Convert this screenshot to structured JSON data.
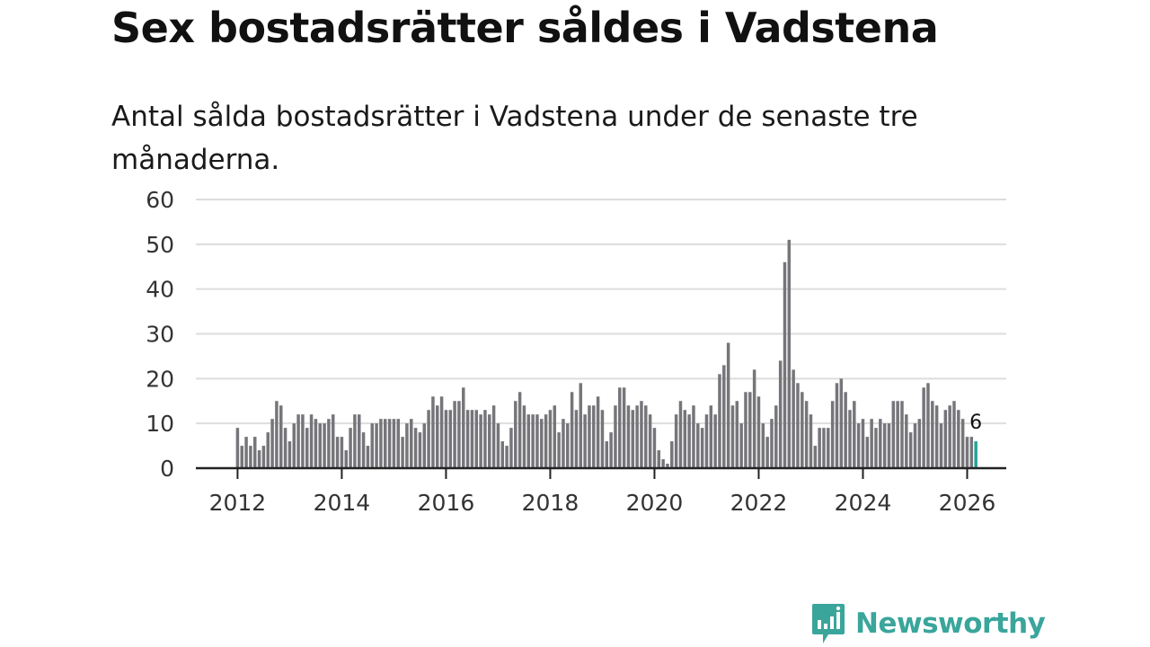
{
  "header": {
    "title": "Sex bostadsrätter såldes i Vadstena",
    "subtitle": "Antal sålda bostadsrätter i Vadstena under de senaste tre månaderna."
  },
  "brand": {
    "name": "Newsworthy",
    "color": "#3aa59b"
  },
  "colors": {
    "bar": "#75757a",
    "highlight": "#21a396",
    "grid": "#dddddd",
    "axis": "#222222"
  },
  "chart_data": {
    "type": "bar",
    "title": "Sex bostadsrätter såldes i Vadstena",
    "subtitle": "Antal sålda bostadsrätter i Vadstena under de senaste tre månaderna.",
    "xlabel": "",
    "ylabel": "",
    "ylim": [
      0,
      60
    ],
    "yticks": [
      0,
      10,
      20,
      30,
      40,
      50,
      60
    ],
    "grid": true,
    "x_start": {
      "year": 2012,
      "month": 1
    },
    "xlim": [
      2011.2,
      2026.75
    ],
    "xticks": [
      2012,
      2014,
      2016,
      2018,
      2020,
      2022,
      2024,
      2026
    ],
    "xtick_labels": [
      "2012",
      "2014",
      "2016",
      "2018",
      "2020",
      "2022",
      "2024",
      "2026"
    ],
    "frequency": "monthly",
    "series": [
      {
        "name": "Antal sålda bostadsrätter",
        "values": [
          9,
          5,
          7,
          5,
          7,
          4,
          5,
          8,
          11,
          15,
          14,
          9,
          6,
          10,
          12,
          12,
          9,
          12,
          11,
          10,
          10,
          11,
          12,
          7,
          7,
          4,
          9,
          12,
          12,
          8,
          5,
          10,
          10,
          11,
          11,
          11,
          11,
          11,
          7,
          10,
          11,
          9,
          8,
          10,
          13,
          16,
          14,
          16,
          13,
          13,
          15,
          15,
          18,
          13,
          13,
          13,
          12,
          13,
          12,
          14,
          10,
          6,
          5,
          9,
          15,
          17,
          14,
          12,
          12,
          12,
          11,
          12,
          13,
          14,
          8,
          11,
          10,
          17,
          13,
          19,
          12,
          14,
          14,
          16,
          13,
          6,
          8,
          14,
          18,
          18,
          14,
          13,
          14,
          15,
          14,
          12,
          9,
          4,
          2,
          1,
          6,
          12,
          15,
          13,
          12,
          14,
          10,
          9,
          12,
          14,
          12,
          21,
          23,
          28,
          14,
          15,
          10,
          17,
          17,
          22,
          16,
          10,
          7,
          11,
          14,
          24,
          46,
          51,
          22,
          19,
          17,
          15,
          12,
          5,
          9,
          9,
          9,
          15,
          19,
          20,
          17,
          13,
          15,
          10,
          11,
          7,
          11,
          9,
          11,
          10,
          10,
          15,
          15,
          15,
          12,
          8,
          10,
          11,
          18,
          19,
          15,
          14,
          10,
          13,
          14,
          15,
          13,
          11,
          7,
          7,
          6
        ]
      }
    ],
    "highlight": {
      "index": 170,
      "label": "6"
    },
    "annotations": [
      {
        "text": "6",
        "target": "last-bar"
      }
    ]
  }
}
